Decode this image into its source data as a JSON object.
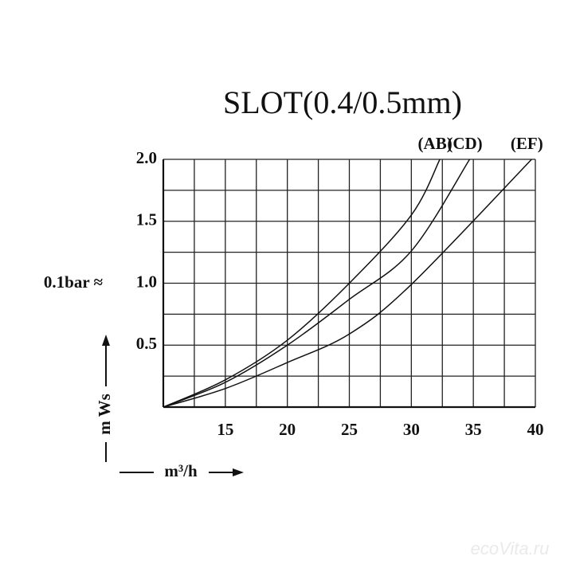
{
  "chart_data": {
    "type": "line",
    "title": "SLOT(0.4/0.5mm)",
    "series": [
      {
        "name": "(AB)",
        "color": "#111111",
        "x": [
          10,
          15,
          20,
          25,
          30,
          32.3
        ],
        "values": [
          0,
          0.22,
          0.54,
          1.0,
          1.55,
          2.0
        ]
      },
      {
        "name": "(CD)",
        "color": "#111111",
        "x": [
          10,
          15,
          20,
          25,
          30,
          34.7
        ],
        "values": [
          0,
          0.2,
          0.5,
          0.87,
          1.26,
          2.0
        ]
      },
      {
        "name": "(EF)",
        "color": "#111111",
        "x": [
          10,
          15,
          20,
          25,
          30,
          39.7
        ],
        "values": [
          0,
          0.15,
          0.36,
          0.59,
          0.99,
          2.0
        ]
      }
    ],
    "xlim": [
      10,
      40
    ],
    "ylim": [
      0,
      2
    ],
    "xticks": [
      15,
      20,
      25,
      30,
      35,
      40
    ],
    "yticks": [
      0.5,
      {
        "value": 1,
        "label": "1.0"
      },
      1.5,
      {
        "value": 2,
        "label": "2.0"
      }
    ],
    "xgrid": [
      12.5,
      15,
      17.5,
      20,
      22.5,
      25,
      27.5,
      30,
      32.5,
      35,
      37.5,
      40
    ],
    "ygrid": [
      0.25,
      0.5,
      0.75,
      1,
      1.25,
      1.5,
      1.75,
      2
    ],
    "grid": true,
    "y_annotation": "0.1bar ≈",
    "ylabel": "m Ws",
    "xlabel": "m³/h",
    "watermark": "ecoVita.ru"
  }
}
